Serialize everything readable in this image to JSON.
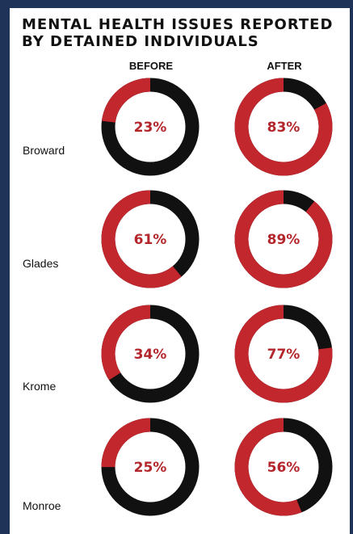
{
  "chart_data": {
    "type": "pie",
    "subtype": "donut",
    "title": "MENTAL HEALTH ISSUES REPORTED BY DETAINED INDIVIDUALS",
    "columns": [
      "BEFORE",
      "AFTER"
    ],
    "categories": [
      "Broward",
      "Glades",
      "Krome",
      "Monroe"
    ],
    "series": [
      {
        "name": "BEFORE",
        "values": [
          23,
          61,
          34,
          25
        ]
      },
      {
        "name": "AFTER",
        "values": [
          83,
          89,
          77,
          56
        ]
      }
    ],
    "labels": {
      "before": [
        "23%",
        "61%",
        "34%",
        "25%"
      ],
      "after": [
        "83%",
        "89%",
        "77%",
        "56%"
      ]
    },
    "unit": "%",
    "colors": {
      "value": "#c1272d",
      "remainder": "#111111",
      "label": "#b3262b",
      "frame": "#1f3358"
    }
  }
}
